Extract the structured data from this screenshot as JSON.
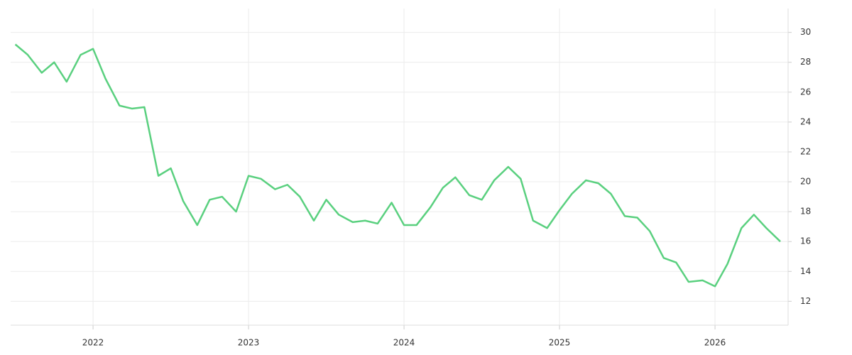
{
  "chart_data": {
    "type": "line",
    "color": "#5ad07f",
    "grid": true,
    "x": [
      2021.5,
      2021.58,
      2021.67,
      2021.75,
      2021.83,
      2021.92,
      2022,
      2022.08,
      2022.17,
      2022.25,
      2022.33,
      2022.42,
      2022.5,
      2022.58,
      2022.67,
      2022.75,
      2022.83,
      2022.92,
      2023,
      2023.08,
      2023.17,
      2023.25,
      2023.33,
      2023.42,
      2023.5,
      2023.58,
      2023.67,
      2023.75,
      2023.83,
      2023.92,
      2024,
      2024.08,
      2024.17,
      2024.25,
      2024.33,
      2024.42,
      2024.5,
      2024.58,
      2024.67,
      2024.75,
      2024.83,
      2024.92,
      2025,
      2025.08,
      2025.17,
      2025.25,
      2025.33,
      2025.42,
      2025.5,
      2025.58,
      2025.67,
      2025.75,
      2025.83,
      2025.92,
      2026,
      2026.08,
      2026.17,
      2026.25,
      2026.33,
      2026.42
    ],
    "values": [
      29.2,
      28.5,
      27.3,
      28.0,
      26.7,
      28.5,
      28.9,
      26.9,
      25.1,
      24.9,
      25.0,
      20.4,
      20.9,
      18.7,
      17.1,
      18.8,
      19.0,
      18.0,
      20.4,
      20.2,
      19.5,
      19.8,
      19.0,
      17.4,
      18.8,
      17.8,
      17.3,
      17.4,
      17.2,
      18.6,
      17.1,
      17.1,
      18.3,
      19.6,
      20.3,
      19.1,
      18.8,
      20.1,
      21.0,
      20.2,
      17.4,
      16.9,
      18.1,
      19.2,
      20.1,
      19.9,
      19.2,
      17.7,
      17.6,
      16.7,
      14.9,
      14.6,
      13.3,
      13.4,
      13.0,
      14.5,
      16.9,
      17.8,
      16.9,
      16.0
    ],
    "xlim": [
      2021.47,
      2026.47
    ],
    "xticks": [
      2022,
      2023,
      2024,
      2025,
      2026
    ],
    "ylim": [
      10.4,
      31.6
    ],
    "yticks": [
      12,
      14,
      16,
      18,
      20,
      22,
      24,
      26,
      28,
      30
    ]
  }
}
